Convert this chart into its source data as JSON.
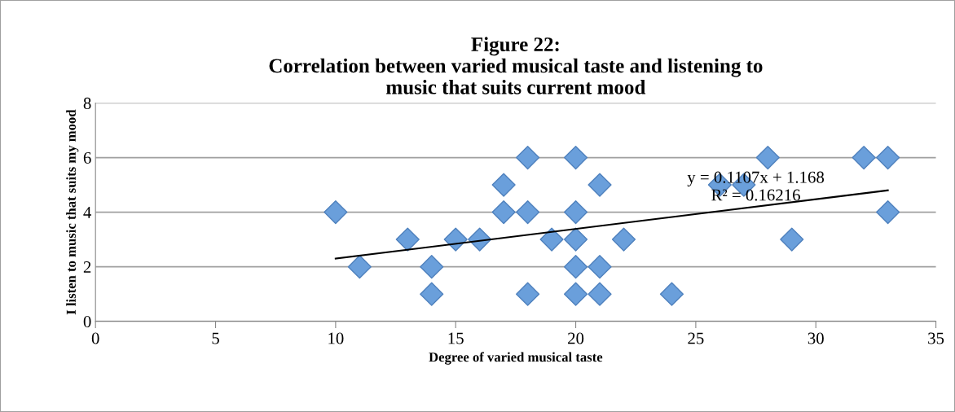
{
  "chart_data": {
    "type": "scatter",
    "title": "Figure 22:\nCorrelation between varied musical taste and listening to\nmusic that suits current mood",
    "xlabel": "Degree of varied musical taste",
    "ylabel": "I listen to music that suits my mood",
    "series": [
      {
        "color": "#6a9fdb",
        "marker": "diamond",
        "x": [
          10,
          11,
          13,
          14,
          14,
          15,
          16,
          17,
          17,
          18,
          18,
          18,
          19,
          20,
          20,
          20,
          20,
          20,
          21,
          21,
          21,
          22,
          24,
          26,
          27,
          28,
          29,
          32,
          33,
          33
        ],
        "values": [
          4,
          2,
          3,
          2,
          1,
          3,
          3,
          5,
          4,
          6,
          4,
          1,
          3,
          6,
          4,
          3,
          2,
          1,
          5,
          2,
          1,
          3,
          1,
          5,
          5,
          6,
          3,
          6,
          6,
          4
        ]
      },
      {
        "type": "line",
        "color": "#000000",
        "marker": "none",
        "x": [
          10,
          33
        ],
        "values": [
          2.3,
          4.8
        ]
      }
    ],
    "annotations": [
      {
        "text": "y = 0.1107x + 1.168\nR² = 0.16216",
        "x": 27.5,
        "y": 4.9
      }
    ],
    "xlim": [
      0,
      35
    ],
    "xticks": [
      0,
      5,
      10,
      15,
      20,
      25,
      30,
      35
    ],
    "ylim": [
      0,
      8
    ],
    "yticks": [
      0,
      2,
      4,
      6,
      8
    ],
    "grid": "y",
    "legend": false
  }
}
